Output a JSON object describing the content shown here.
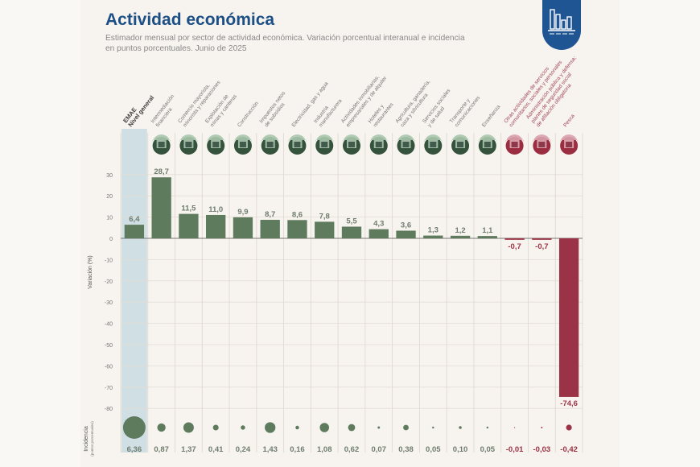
{
  "header": {
    "title": "Actividad económica",
    "subtitle_line1": "Estimador mensual por sector de actividad económica. Variación porcentual interanual e incidencia",
    "subtitle_line2": "en puntos porcentuales. Junio de 2025",
    "logo_icon": "bar-chart-icon"
  },
  "colors": {
    "positive": "#5f7b5e",
    "negative": "#9b3346",
    "title": "#1c4f86",
    "highlight_column": "#c9dbe0"
  },
  "chart_data": {
    "type": "bar",
    "title": "Actividad económica",
    "subtitle": "Estimador mensual por sector de actividad económica. Variación porcentual interanual e incidencia en puntos porcentuales. Junio de 2025",
    "ylabel": "Variación (%)",
    "ylim": [
      -85,
      35
    ],
    "yticks": [
      30,
      20,
      10,
      0,
      -10,
      -20,
      -30,
      -40,
      -50,
      -60,
      -70,
      -80
    ],
    "grid": true,
    "secondary_label": "Incidencia",
    "secondary_sublabel": "(puntos porcentuales)",
    "categories": [
      {
        "label": [
          "EMAE",
          "Nivel general"
        ],
        "icon": "total-icon",
        "highlight": true
      },
      {
        "label": [
          "Intermediación",
          "financiera"
        ],
        "icon": "bank-icon"
      },
      {
        "label": [
          "Comercio mayorista,",
          "minorista y reparaciones"
        ],
        "icon": "shop-icon"
      },
      {
        "label": [
          "Explotación de",
          "minas y canteras"
        ],
        "icon": "oil-pump-icon"
      },
      {
        "label": [
          "Construcción"
        ],
        "icon": "excavator-icon"
      },
      {
        "label": [
          "Impuestos netos",
          "de subsidios"
        ],
        "icon": "coins-icon"
      },
      {
        "label": [
          "Electricidad, gas y agua"
        ],
        "icon": "power-tower-icon"
      },
      {
        "label": [
          "Industria",
          "manufacturera"
        ],
        "icon": "gears-icon"
      },
      {
        "label": [
          "Actividades inmobiliarias,",
          "empresariales y de alquiler"
        ],
        "icon": "real-estate-icon"
      },
      {
        "label": [
          "Hoteles y",
          "restaurantes"
        ],
        "icon": "hotel-icon"
      },
      {
        "label": [
          "Agricultura, ganadería,",
          "caza y silvicultura"
        ],
        "icon": "agriculture-icon"
      },
      {
        "label": [
          "Servicios sociales",
          "y de salud"
        ],
        "icon": "health-icon"
      },
      {
        "label": [
          "Transporte y",
          "comunicaciones"
        ],
        "icon": "transport-icon"
      },
      {
        "label": [
          "Enseñanza"
        ],
        "icon": "education-icon"
      },
      {
        "label": [
          "Otras actividades de servicios",
          "comunitarios, sociales y personales"
        ],
        "icon": "theater-icon"
      },
      {
        "label": [
          "Administración pública y defensa;",
          "planes de seguridad social",
          "de afiliación obligatoria"
        ],
        "icon": "government-icon"
      },
      {
        "label": [
          "Pesca"
        ],
        "icon": "fishing-icon"
      }
    ],
    "series": [
      {
        "name": "Variación (%)",
        "values": [
          6.4,
          28.7,
          11.5,
          11.0,
          9.9,
          8.7,
          8.6,
          7.8,
          5.5,
          4.3,
          3.6,
          1.3,
          1.2,
          1.1,
          -0.7,
          -0.7,
          -74.6
        ],
        "labels": [
          "6,4",
          "28,7",
          "11,5",
          "11,0",
          "9,9",
          "8,7",
          "8,6",
          "7,8",
          "5,5",
          "4,3",
          "3,6",
          "1,3",
          "1,2",
          "1,1",
          "-0,7",
          "-0,7",
          "-74,6"
        ]
      },
      {
        "name": "Incidencia (puntos porcentuales)",
        "values": [
          6.36,
          0.87,
          1.37,
          0.41,
          0.24,
          1.43,
          0.16,
          1.08,
          0.62,
          0.07,
          0.38,
          0.05,
          0.1,
          0.05,
          -0.01,
          -0.03,
          -0.42
        ],
        "labels": [
          "6,36",
          "0,87",
          "1,37",
          "0,41",
          "0,24",
          "1,43",
          "0,16",
          "1,08",
          "0,62",
          "0,07",
          "0,38",
          "0,05",
          "0,10",
          "0,05",
          "-0,01",
          "-0,03",
          "-0,42"
        ]
      }
    ]
  }
}
